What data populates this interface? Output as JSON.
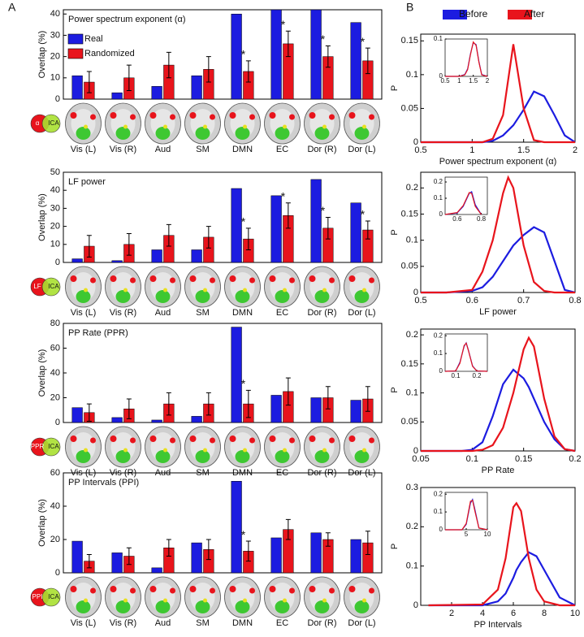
{
  "panel_labels": [
    "A",
    "B"
  ],
  "chart_data": [
    {
      "type": "bar",
      "title": "Power spectrum exponent (α)",
      "ylabel": "Overlap (%)",
      "venn": [
        "α",
        "ICA"
      ],
      "categories": [
        "Vis (L)",
        "Vis (R)",
        "Aud",
        "SM",
        "DMN",
        "EC",
        "Dor (R)",
        "Dor (L)"
      ],
      "ylim": [
        0,
        42
      ],
      "yticks": [
        0,
        10,
        20,
        30,
        40
      ],
      "series": [
        {
          "name": "Real",
          "color": "#1c1ce0",
          "values": [
            11,
            3,
            6,
            11,
            40,
            42,
            42,
            36
          ]
        },
        {
          "name": "Randomized",
          "color": "#e8141c",
          "values": [
            8,
            10,
            16,
            14,
            13,
            26,
            20,
            18
          ],
          "errors": [
            5,
            6,
            6,
            6,
            5,
            6,
            5,
            6
          ]
        }
      ],
      "markers": [
        null,
        null,
        null,
        null,
        "*",
        "*",
        "*",
        "*"
      ]
    },
    {
      "type": "bar",
      "title": "LF power",
      "ylabel": "Overlap (%)",
      "venn": [
        "LF",
        "ICA"
      ],
      "categories": [
        "Vis (L)",
        "Vis (R)",
        "Aud",
        "SM",
        "DMN",
        "EC",
        "Dor (R)",
        "Dor (L)"
      ],
      "ylim": [
        0,
        50
      ],
      "yticks": [
        0,
        10,
        20,
        30,
        40,
        50
      ],
      "series": [
        {
          "color": "#1c1ce0",
          "values": [
            2,
            1,
            7,
            7,
            41,
            37,
            46,
            33
          ]
        },
        {
          "color": "#e8141c",
          "values": [
            9,
            10,
            15,
            14,
            13,
            26,
            19,
            18
          ],
          "errors": [
            6,
            6,
            6,
            6,
            6,
            7,
            6,
            5
          ]
        }
      ],
      "markers": [
        null,
        null,
        null,
        null,
        "*",
        "*",
        "*",
        "*"
      ]
    },
    {
      "type": "bar",
      "title": "PP Rate (PPR)",
      "ylabel": "Overlap (%)",
      "venn": [
        "PPR",
        "ICA"
      ],
      "categories": [
        "Vis (L)",
        "Vis (R)",
        "Aud",
        "SM",
        "DMN",
        "EC",
        "Dor (R)",
        "Dor (L)"
      ],
      "ylim": [
        0,
        80
      ],
      "yticks": [
        0,
        20,
        40,
        60,
        80
      ],
      "series": [
        {
          "color": "#1c1ce0",
          "values": [
            12,
            4,
            2,
            5,
            77,
            22,
            20,
            18
          ]
        },
        {
          "color": "#e8141c",
          "values": [
            8,
            11,
            15,
            15,
            15,
            25,
            20,
            19
          ],
          "errors": [
            7,
            8,
            9,
            9,
            11,
            11,
            9,
            10
          ]
        }
      ],
      "markers": [
        null,
        null,
        null,
        null,
        "*",
        null,
        null,
        null
      ]
    },
    {
      "type": "bar",
      "title": "PP Intervals (PPI)",
      "ylabel": "Overlap (%)",
      "venn": [
        "PPI",
        "ICA"
      ],
      "categories": [
        "Vis (L)",
        "Vis (R)",
        "Aud",
        "SM",
        "DMN",
        "EC",
        "Dor (R)",
        "Dor (L)"
      ],
      "ylim": [
        0,
        60
      ],
      "yticks": [
        0,
        20,
        40,
        60
      ],
      "series": [
        {
          "color": "#1c1ce0",
          "values": [
            19,
            12,
            3,
            18,
            55,
            21,
            24,
            20
          ]
        },
        {
          "color": "#e8141c",
          "values": [
            7,
            10,
            15,
            14,
            13,
            26,
            20,
            18
          ],
          "errors": [
            4,
            5,
            5,
            6,
            6,
            6,
            4,
            7
          ]
        }
      ],
      "markers": [
        null,
        null,
        null,
        null,
        "*",
        null,
        null,
        null
      ]
    },
    {
      "type": "line",
      "xlabel": "Power spectrum exponent (α)",
      "ylabel": "P",
      "x": [
        0.5,
        0.6,
        0.7,
        0.8,
        0.9,
        1.0,
        1.1,
        1.2,
        1.3,
        1.4,
        1.5,
        1.6,
        1.7,
        1.8,
        1.9,
        2.0
      ],
      "xlim": [
        0.5,
        2
      ],
      "xticks": [
        0.5,
        1,
        1.5,
        2
      ],
      "ylim": [
        0,
        0.16
      ],
      "yticks": [
        0,
        0.05,
        0.1,
        0.15
      ],
      "series": [
        {
          "name": "Before",
          "color": "#1c1ce0",
          "values": [
            0,
            0,
            0,
            0,
            0,
            0,
            0,
            0.002,
            0.01,
            0.025,
            0.048,
            0.075,
            0.068,
            0.04,
            0.01,
            0
          ]
        },
        {
          "name": "After",
          "color": "#e8141c",
          "values": [
            0,
            0,
            0,
            0,
            0,
            0,
            0,
            0.005,
            0.04,
            0.145,
            0.05,
            0.003,
            0,
            0,
            0,
            0
          ]
        }
      ],
      "inset": {
        "x": [
          0.5,
          1,
          1.2,
          1.3,
          1.4,
          1.5,
          1.6,
          1.7,
          1.8,
          2
        ],
        "xlim": [
          0.5,
          2
        ],
        "xticks": [
          0.5,
          1,
          1.5,
          2
        ],
        "ylim": [
          0,
          0.1
        ],
        "yticks": [
          0,
          0.1
        ],
        "series": [
          {
            "color": "#1c1ce0",
            "values": [
              0,
              0,
              0.005,
              0.02,
              0.06,
              0.09,
              0.085,
              0.04,
              0.005,
              0
            ]
          },
          {
            "color": "#e8141c",
            "values": [
              0,
              0,
              0.004,
              0.018,
              0.058,
              0.092,
              0.083,
              0.038,
              0.004,
              0
            ]
          }
        ]
      }
    },
    {
      "type": "line",
      "xlabel": "LF power",
      "ylabel": "P",
      "x": [
        0.5,
        0.55,
        0.6,
        0.62,
        0.64,
        0.66,
        0.67,
        0.68,
        0.7,
        0.72,
        0.74,
        0.76,
        0.78,
        0.8
      ],
      "xlim": [
        0.5,
        0.8
      ],
      "xticks": [
        0.5,
        0.6,
        0.7,
        0.8
      ],
      "ylim": [
        0,
        0.23
      ],
      "yticks": [
        0,
        0.05,
        0.1,
        0.15,
        0.2
      ],
      "series": [
        {
          "color": "#1c1ce0",
          "values": [
            0,
            0,
            0.003,
            0.01,
            0.03,
            0.06,
            0.075,
            0.09,
            0.11,
            0.125,
            0.115,
            0.06,
            0.005,
            0
          ]
        },
        {
          "color": "#e8141c",
          "values": [
            0,
            0,
            0.005,
            0.04,
            0.1,
            0.19,
            0.22,
            0.2,
            0.09,
            0.02,
            0.003,
            0,
            0,
            0
          ]
        }
      ],
      "inset": {
        "x": [
          0.5,
          0.6,
          0.65,
          0.7,
          0.72,
          0.75,
          0.8
        ],
        "xlim": [
          0.5,
          0.85
        ],
        "xticks": [
          0.6,
          0.8
        ],
        "ylim": [
          0,
          0.23
        ],
        "yticks": [
          0,
          0.1,
          0.2
        ],
        "series": [
          {
            "color": "#1c1ce0",
            "values": [
              0,
              0.01,
              0.05,
              0.13,
              0.14,
              0.06,
              0
            ]
          },
          {
            "color": "#e8141c",
            "values": [
              0,
              0.012,
              0.055,
              0.135,
              0.13,
              0.05,
              0
            ]
          }
        ]
      }
    },
    {
      "type": "line",
      "xlabel": "PP Rate",
      "ylabel": "P",
      "x": [
        0.05,
        0.09,
        0.1,
        0.11,
        0.12,
        0.13,
        0.14,
        0.15,
        0.155,
        0.16,
        0.17,
        0.18,
        0.19,
        0.2
      ],
      "xlim": [
        0.05,
        0.2
      ],
      "xticks": [
        0.05,
        0.1,
        0.15,
        0.2
      ],
      "ylim": [
        0,
        0.21
      ],
      "yticks": [
        0,
        0.05,
        0.1,
        0.15,
        0.2
      ],
      "series": [
        {
          "color": "#1c1ce0",
          "values": [
            0,
            0,
            0.002,
            0.015,
            0.06,
            0.115,
            0.14,
            0.125,
            0.11,
            0.09,
            0.05,
            0.02,
            0.003,
            0
          ]
        },
        {
          "color": "#e8141c",
          "values": [
            0,
            0,
            0,
            0.002,
            0.01,
            0.04,
            0.1,
            0.175,
            0.195,
            0.18,
            0.09,
            0.025,
            0.003,
            0
          ]
        }
      ],
      "inset": {
        "x": [
          0.05,
          0.1,
          0.12,
          0.14,
          0.15,
          0.16,
          0.18,
          0.2,
          0.25
        ],
        "xlim": [
          0.05,
          0.25
        ],
        "xticks": [
          0.1,
          0.2
        ],
        "ylim": [
          0,
          0.21
        ],
        "yticks": [
          0,
          0.1,
          0.2
        ],
        "series": [
          {
            "color": "#1c1ce0",
            "values": [
              0,
              0.002,
              0.05,
              0.14,
              0.16,
              0.12,
              0.03,
              0.002,
              0
            ]
          },
          {
            "color": "#e8141c",
            "values": [
              0,
              0.002,
              0.045,
              0.145,
              0.158,
              0.118,
              0.028,
              0.002,
              0
            ]
          }
        ]
      }
    },
    {
      "type": "line",
      "xlabel": "PP Intervals",
      "ylabel": "P",
      "x": [
        0.5,
        4,
        5,
        5.5,
        6,
        6.2,
        6.5,
        7,
        7.5,
        8,
        9,
        10
      ],
      "xlim": [
        0,
        10
      ],
      "xticks": [
        2,
        4,
        6,
        8,
        10
      ],
      "ylim": [
        0,
        0.3
      ],
      "yticks": [
        0,
        0.1,
        0.2,
        0.3
      ],
      "series": [
        {
          "color": "#1c1ce0",
          "values": [
            0,
            0,
            0.01,
            0.03,
            0.07,
            0.09,
            0.11,
            0.135,
            0.125,
            0.09,
            0.02,
            0
          ]
        },
        {
          "color": "#e8141c",
          "values": [
            0,
            0.002,
            0.04,
            0.12,
            0.25,
            0.26,
            0.24,
            0.12,
            0.04,
            0.01,
            0,
            0
          ]
        }
      ],
      "inset": {
        "x": [
          0,
          4,
          5,
          6,
          6.5,
          7,
          8,
          10
        ],
        "xlim": [
          0,
          10
        ],
        "xticks": [
          5,
          10
        ],
        "ylim": [
          0,
          0.21
        ],
        "yticks": [
          0,
          0.1,
          0.2
        ],
        "series": [
          {
            "color": "#1c1ce0",
            "values": [
              0,
              0,
              0.03,
              0.15,
              0.17,
              0.12,
              0.01,
              0
            ]
          },
          {
            "color": "#e8141c",
            "values": [
              0,
              0,
              0.035,
              0.16,
              0.165,
              0.11,
              0.01,
              0
            ]
          }
        ]
      }
    }
  ]
}
